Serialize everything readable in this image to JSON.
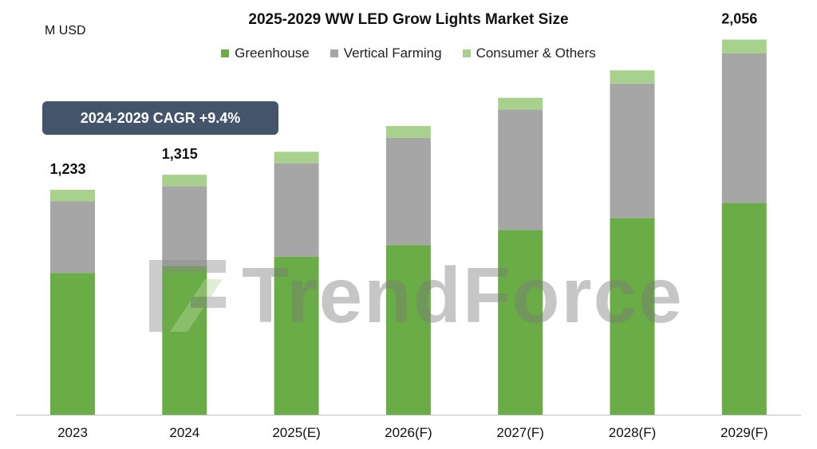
{
  "title": "2025-2029 WW LED Grow Lights Market Size",
  "unit": "M USD",
  "cagr_note": "2024-2029 CAGR +9.4%",
  "watermark": "TrendForce",
  "colors": {
    "Greenhouse": "#6aac45",
    "Vertical Farming": "#a6a6a6",
    "Consumer & Others": "#a9d18e"
  },
  "chart_data": {
    "type": "bar",
    "stacked": true,
    "categories": [
      "2023",
      "2024",
      "2025(E)",
      "2026(F)",
      "2027(F)",
      "2028(F)",
      "2029(F)"
    ],
    "series": [
      {
        "name": "Greenhouse",
        "values": [
          777,
          813,
          866,
          930,
          1012,
          1078,
          1160
        ]
      },
      {
        "name": "Vertical Farming",
        "values": [
          392,
          440,
          512,
          587,
          660,
          737,
          821
        ]
      },
      {
        "name": "Consumer & Others",
        "values": [
          64,
          62,
          63,
          65,
          65,
          72,
          75
        ]
      }
    ],
    "totals": [
      {
        "category": "2023",
        "label": "1,233"
      },
      {
        "category": "2024",
        "label": "1,315"
      },
      {
        "category": "2029(F)",
        "label": "2,056"
      }
    ],
    "ylim": [
      0,
      2100
    ],
    "grid": false,
    "legend": "top"
  }
}
